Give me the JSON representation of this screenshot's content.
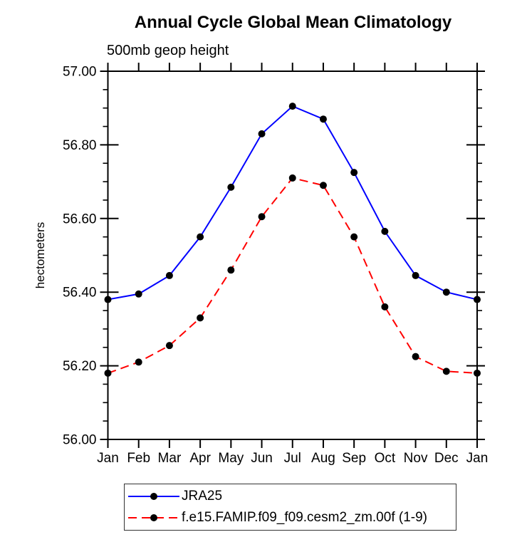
{
  "header": {
    "title": "Annual Cycle Global Mean Climatology",
    "subtitle": "500mb geop height"
  },
  "chart_data": {
    "type": "line",
    "title": "Annual Cycle Global Mean Climatology",
    "subtitle": "500mb geop height",
    "xlabel": "",
    "ylabel": "hectometers",
    "x_labels": [
      "Jan",
      "Feb",
      "Mar",
      "Apr",
      "May",
      "Jun",
      "Jul",
      "Aug",
      "Sep",
      "Oct",
      "Nov",
      "Dec",
      "Jan"
    ],
    "ylim": [
      56.0,
      57.0
    ],
    "ytick_step": 0.2,
    "yminor_step": 0.05,
    "ytick_decimals": 2,
    "grid": false,
    "legend_position": "bottom",
    "marker": "filled-black-circle",
    "series": [
      {
        "name": "JRA25",
        "color": "#0000ff",
        "line_style": "solid",
        "values": [
          56.38,
          56.395,
          56.445,
          56.55,
          56.685,
          56.83,
          56.905,
          56.87,
          56.725,
          56.565,
          56.445,
          56.4,
          56.38
        ]
      },
      {
        "name": "f.e15.FAMIP.f09_f09.cesm2_zm.00f (1-9)",
        "color": "#ff0000",
        "line_style": "dashed",
        "values": [
          56.18,
          56.21,
          56.255,
          56.33,
          56.46,
          56.605,
          56.71,
          56.69,
          56.55,
          56.36,
          56.225,
          56.185,
          56.18
        ]
      }
    ]
  },
  "colors": {
    "axis": "#000000",
    "marker": "#000000",
    "background": "#ffffff",
    "legend_border": "#333333"
  }
}
